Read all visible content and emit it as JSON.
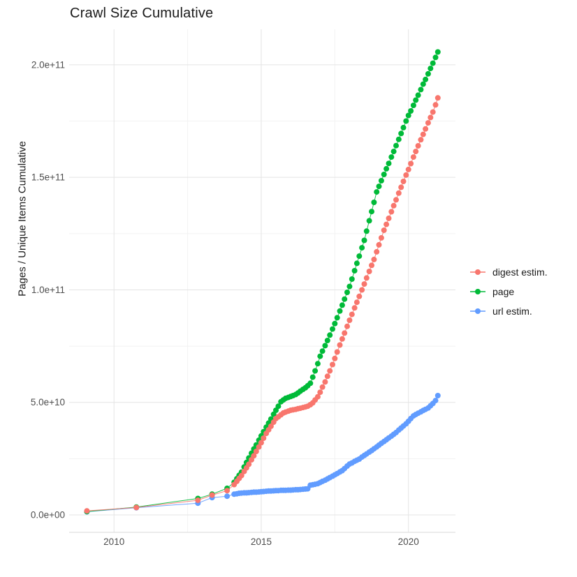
{
  "title": "Crawl Size Cumulative",
  "y_axis_title": "Pages / Unique Items Cumulative",
  "legend": {
    "items": [
      {
        "label": "digest estim.",
        "color": "#F8766D"
      },
      {
        "label": "page",
        "color": "#00BA38"
      },
      {
        "label": "url estim.",
        "color": "#619CFF"
      }
    ]
  },
  "colors": {
    "digest": "#F8766D",
    "page": "#00BA38",
    "url": "#619CFF",
    "grid_major": "#E4E4E4",
    "grid_minor": "#F2F2F2",
    "axis_line": "#D9D9D9",
    "tick_text": "#4D4D4D"
  },
  "chart_data": {
    "type": "scatter",
    "title": "Crawl Size Cumulative",
    "xlabel": "",
    "ylabel": "Pages / Unique Items Cumulative",
    "grid": true,
    "legend_position": "right",
    "xlim": [
      2008.8,
      2021.3
    ],
    "ylim": [
      -11000000000.0,
      216000000000.0
    ],
    "x_ticks": [
      2010,
      2015,
      2020
    ],
    "x_tick_labels": [
      "2010",
      "2015",
      "2020"
    ],
    "x_minor_ticks": [
      2012.5,
      2017.5
    ],
    "y_ticks": [
      0,
      50000000000.0,
      100000000000.0,
      150000000000.0,
      200000000000.0
    ],
    "y_tick_labels": [
      "0.0e+00",
      "5.0e+10",
      "1.0e+11",
      "1.5e+11",
      "2.0e+11"
    ],
    "y_minor_ticks": [
      25000000000.0,
      75000000000.0,
      125000000000.0,
      175000000000.0
    ],
    "series": [
      {
        "name": "digest estim.",
        "color": "#F8766D",
        "x": [
          2009.08,
          2010.76,
          2012.85,
          2013.33,
          2013.84,
          2014.08,
          2014.17,
          2014.25,
          2014.33,
          2014.42,
          2014.5,
          2014.58,
          2014.67,
          2014.75,
          2014.83,
          2014.92,
          2015.0,
          2015.08,
          2015.17,
          2015.25,
          2015.33,
          2015.42,
          2015.5,
          2015.58,
          2015.67,
          2015.75,
          2015.83,
          2015.92,
          2016.0,
          2016.08,
          2016.17,
          2016.25,
          2016.33,
          2016.42,
          2016.5,
          2016.58,
          2016.67,
          2016.75,
          2016.83,
          2016.92,
          2017.0,
          2017.08,
          2017.17,
          2017.25,
          2017.33,
          2017.42,
          2017.5,
          2017.58,
          2017.67,
          2017.75,
          2017.83,
          2017.92,
          2018.0,
          2018.08,
          2018.17,
          2018.25,
          2018.33,
          2018.42,
          2018.5,
          2018.58,
          2018.67,
          2018.75,
          2018.83,
          2018.92,
          2019.0,
          2019.08,
          2019.17,
          2019.25,
          2019.33,
          2019.42,
          2019.5,
          2019.58,
          2019.67,
          2019.75,
          2019.83,
          2019.92,
          2020.0,
          2020.08,
          2020.17,
          2020.25,
          2020.33,
          2020.42,
          2020.5,
          2020.58,
          2020.67,
          2020.75,
          2020.83,
          2020.92,
          2021.0
        ],
        "y": [
          1800000000.0,
          3300000000.0,
          6500000000.0,
          8800000000.0,
          10800000000.0,
          13500000000.0,
          14900000000.0,
          16200000000.0,
          17500000000.0,
          19300000000.0,
          20900000000.0,
          22500000000.0,
          24500000000.0,
          26300000000.0,
          28200000000.0,
          30200000000.0,
          32100000000.0,
          34100000000.0,
          36200000000.0,
          37800000000.0,
          39400000000.0,
          41200000000.0,
          42800000000.0,
          43600000000.0,
          44500000000.0,
          45300000000.0,
          45700000000.0,
          46100000000.0,
          46500000000.0,
          46700000000.0,
          46900000000.0,
          47200000000.0,
          47400000000.0,
          47700000000.0,
          48000000000.0,
          48300000000.0,
          49000000000.0,
          49800000000.0,
          51100000000.0,
          52500000000.0,
          54500000000.0,
          56800000000.0,
          59100000000.0,
          61600000000.0,
          64000000000.0,
          66800000000.0,
          69500000000.0,
          72400000000.0,
          75500000000.0,
          78200000000.0,
          80800000000.0,
          83800000000.0,
          86500000000.0,
          89100000000.0,
          92000000000.0,
          94500000000.0,
          97100000000.0,
          100000000000.0,
          102600000000.0,
          105300000000.0,
          108200000000.0,
          110900000000.0,
          113500000000.0,
          116900000000.0,
          120000000000.0,
          123100000000.0,
          126500000000.0,
          129100000000.0,
          131800000000.0,
          134700000000.0,
          137400000000.0,
          140000000000.0,
          143000000000.0,
          145600000000.0,
          148200000000.0,
          151000000000.0,
          153500000000.0,
          156100000000.0,
          159000000000.0,
          161500000000.0,
          164000000000.0,
          166700000000.0,
          169100000000.0,
          171500000000.0,
          174200000000.0,
          176600000000.0,
          179000000000.0,
          182200000000.0,
          185300000000.0
        ]
      },
      {
        "name": "page",
        "color": "#00BA38",
        "x": [
          2009.08,
          2010.76,
          2012.85,
          2013.33,
          2013.84,
          2014.08,
          2014.17,
          2014.25,
          2014.33,
          2014.42,
          2014.5,
          2014.58,
          2014.67,
          2014.75,
          2014.83,
          2014.92,
          2015.0,
          2015.08,
          2015.17,
          2015.25,
          2015.33,
          2015.42,
          2015.5,
          2015.58,
          2015.67,
          2015.75,
          2015.83,
          2015.92,
          2016.0,
          2016.08,
          2016.17,
          2016.25,
          2016.33,
          2016.42,
          2016.5,
          2016.58,
          2016.67,
          2016.75,
          2016.83,
          2016.92,
          2017.0,
          2017.08,
          2017.17,
          2017.25,
          2017.33,
          2017.42,
          2017.5,
          2017.58,
          2017.67,
          2017.75,
          2017.83,
          2017.92,
          2018.0,
          2018.08,
          2018.17,
          2018.25,
          2018.33,
          2018.42,
          2018.5,
          2018.58,
          2018.67,
          2018.75,
          2018.83,
          2018.92,
          2019.0,
          2019.08,
          2019.17,
          2019.25,
          2019.33,
          2019.42,
          2019.5,
          2019.58,
          2019.67,
          2019.75,
          2019.83,
          2019.92,
          2020.0,
          2020.08,
          2020.17,
          2020.25,
          2020.33,
          2020.42,
          2020.5,
          2020.58,
          2020.67,
          2020.75,
          2020.83,
          2020.92,
          2021.0
        ],
        "y": [
          1500000000.0,
          3500000000.0,
          7300000000.0,
          9200000000.0,
          11800000000.0,
          14500000000.0,
          16100000000.0,
          17600000000.0,
          19000000000.0,
          21300000000.0,
          23300000000.0,
          25300000000.0,
          27400000000.0,
          29300000000.0,
          31100000000.0,
          33200000000.0,
          35100000000.0,
          37000000000.0,
          39000000000.0,
          40800000000.0,
          42600000000.0,
          44700000000.0,
          46500000000.0,
          48300000000.0,
          50300000000.0,
          51100000000.0,
          51800000000.0,
          52200000000.0,
          52600000000.0,
          53000000000.0,
          53500000000.0,
          54200000000.0,
          55000000000.0,
          55800000000.0,
          56500000000.0,
          57400000000.0,
          58500000000.0,
          61200000000.0,
          64000000000.0,
          67200000000.0,
          70500000000.0,
          72800000000.0,
          75200000000.0,
          77500000000.0,
          79900000000.0,
          82600000000.0,
          85000000000.0,
          87600000000.0,
          90600000000.0,
          93200000000.0,
          95900000000.0,
          98900000000.0,
          101500000000.0,
          104800000000.0,
          108500000000.0,
          111800000000.0,
          115000000000.0,
          118700000000.0,
          122000000000.0,
          126100000000.0,
          130700000000.0,
          134800000000.0,
          138900000000.0,
          143500000000.0,
          146000000000.0,
          148500000000.0,
          151300000000.0,
          153800000000.0,
          156200000000.0,
          159000000000.0,
          161500000000.0,
          164100000000.0,
          166900000000.0,
          169500000000.0,
          172100000000.0,
          175000000000.0,
          177500000000.0,
          179500000000.0,
          182000000000.0,
          184300000000.0,
          186500000000.0,
          189000000000.0,
          191400000000.0,
          193500000000.0,
          196000000000.0,
          198400000000.0,
          200700000000.0,
          203300000000.0,
          205700000000.0
        ]
      },
      {
        "name": "url estim.",
        "color": "#619CFF",
        "x": [
          2009.08,
          2010.76,
          2012.85,
          2013.33,
          2013.84,
          2014.08,
          2014.17,
          2014.25,
          2014.33,
          2014.42,
          2014.5,
          2014.58,
          2014.67,
          2014.75,
          2014.83,
          2014.92,
          2015.0,
          2015.08,
          2015.17,
          2015.25,
          2015.33,
          2015.42,
          2015.5,
          2015.58,
          2015.67,
          2015.75,
          2015.83,
          2015.92,
          2016.0,
          2016.08,
          2016.17,
          2016.25,
          2016.33,
          2016.42,
          2016.5,
          2016.58,
          2016.67,
          2016.75,
          2016.83,
          2016.92,
          2017.0,
          2017.08,
          2017.17,
          2017.25,
          2017.33,
          2017.42,
          2017.5,
          2017.58,
          2017.67,
          2017.75,
          2017.83,
          2017.92,
          2018.0,
          2018.08,
          2018.17,
          2018.25,
          2018.33,
          2018.42,
          2018.5,
          2018.58,
          2018.67,
          2018.75,
          2018.83,
          2018.92,
          2019.0,
          2019.08,
          2019.17,
          2019.25,
          2019.33,
          2019.42,
          2019.5,
          2019.58,
          2019.67,
          2019.75,
          2019.83,
          2019.92,
          2020.0,
          2020.08,
          2020.17,
          2020.25,
          2020.33,
          2020.42,
          2020.5,
          2020.58,
          2020.67,
          2020.75,
          2020.83,
          2020.92,
          2021.0
        ],
        "y": [
          1400000000.0,
          3200000000.0,
          5200000000.0,
          7700000000.0,
          8300000000.0,
          9200000000.0,
          9400000000.0,
          9600000000.0,
          9700000000.0,
          9800000000.0,
          9800000000.0,
          9900000000.0,
          10000000000.0,
          10100000000.0,
          10100000000.0,
          10200000000.0,
          10300000000.0,
          10400000000.0,
          10500000000.0,
          10600000000.0,
          10600000000.0,
          10700000000.0,
          10800000000.0,
          10800000000.0,
          10900000000.0,
          10900000000.0,
          10900000000.0,
          11000000000.0,
          11000000000.0,
          11100000000.0,
          11200000000.0,
          11200000000.0,
          11300000000.0,
          11400000000.0,
          11500000000.0,
          11600000000.0,
          13200000000.0,
          13400000000.0,
          13600000000.0,
          13900000000.0,
          14400000000.0,
          14900000000.0,
          15400000000.0,
          16000000000.0,
          16600000000.0,
          17200000000.0,
          17800000000.0,
          18400000000.0,
          19100000000.0,
          19700000000.0,
          20600000000.0,
          21700000000.0,
          22600000000.0,
          23100000000.0,
          23800000000.0,
          24300000000.0,
          24800000000.0,
          25700000000.0,
          26400000000.0,
          27100000000.0,
          27900000000.0,
          28600000000.0,
          29400000000.0,
          30200000000.0,
          31000000000.0,
          31800000000.0,
          32600000000.0,
          33400000000.0,
          34200000000.0,
          35000000000.0,
          35800000000.0,
          36600000000.0,
          37700000000.0,
          38600000000.0,
          39500000000.0,
          40500000000.0,
          41600000000.0,
          42800000000.0,
          44000000000.0,
          44600000000.0,
          45200000000.0,
          45800000000.0,
          46400000000.0,
          46900000000.0,
          47500000000.0,
          48500000000.0,
          49500000000.0,
          50800000000.0,
          53000000000.0
        ]
      }
    ]
  }
}
